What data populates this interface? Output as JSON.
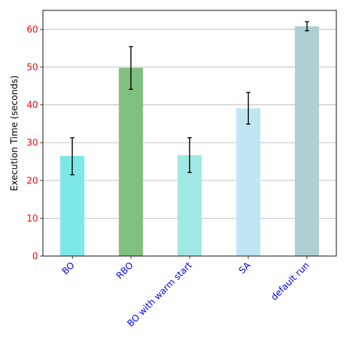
{
  "chart_data": {
    "type": "bar",
    "categories": [
      "BO",
      "RBO",
      "BO with warm start",
      "SA",
      "default run"
    ],
    "values": [
      26.5,
      49.8,
      26.7,
      39.1,
      60.8
    ],
    "error_low": [
      21.5,
      44.1,
      22.1,
      34.9,
      59.6
    ],
    "error_high": [
      31.3,
      55.4,
      31.3,
      43.3,
      62.0
    ],
    "bar_colors": [
      "#7ee8e8",
      "#80c080",
      "#a0e8e4",
      "#c0e6f4",
      "#aecfd3"
    ],
    "title": "",
    "xlabel": "",
    "ylabel": "Execution Time (seconds)",
    "ylim": [
      0,
      65
    ],
    "yticks": [
      0,
      10,
      20,
      30,
      40,
      50,
      60
    ],
    "grid": "y",
    "ytick_color": "#ff0000",
    "xtick_color": "#0000ff",
    "xtick_rotation": 45
  }
}
